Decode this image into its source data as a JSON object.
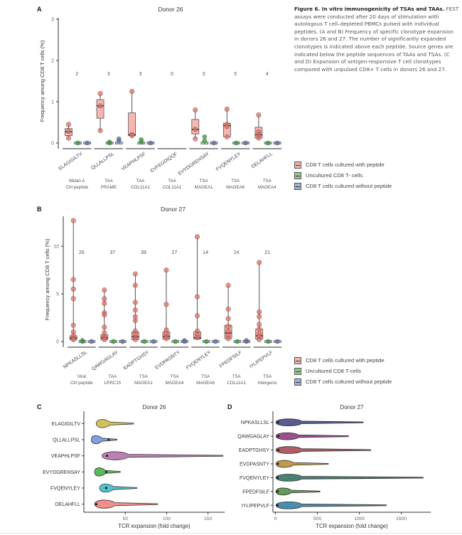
{
  "caption": {
    "title": "Figure 6. In vitro immunogenicity of TSAs and TAAs.",
    "body": "FEST assays were conducted after 20 days of stimulation with autologous T cell–depleted PBMCs pulsed with individual peptides. (A and B) Frequency of specific clonotype expansion in donors 26 and 27. The number of significantly expanded clonotypes is indicated above each peptide. Source genes are indicated below the peptide sequences of TAAs and TSAs. (C and D) Expansion of antigen-responsive T cell clonotypes compared with unpulsed CD8+ T cells in donors 26 and 27."
  },
  "colors": {
    "with_peptide": "#e8837b",
    "uncultured": "#3f8f45",
    "without_peptide": "#5a6f9e"
  },
  "legend_A": [
    {
      "label": "CD8 T cells cultured with peptide",
      "color": "#e8837b"
    },
    {
      "label": "Uncultured CD8 T- cells",
      "color": "#3f8f45"
    },
    {
      "label": "CD8 T cells cultured without peptide",
      "color": "#5a6f9e"
    }
  ],
  "legend_B": [
    {
      "label": "CD8 T cells cultured with peptide",
      "color": "#e8837b"
    },
    {
      "label": "Uncultured CD8 T-cells",
      "color": "#3f8f45"
    },
    {
      "label": "CD8 T cells cultured without peptide",
      "color": "#5a6f9e"
    }
  ],
  "chart_data": [
    {
      "panel": "A",
      "type": "box",
      "title": "Donor 26",
      "ylabel": "Frequency among CD8 T cells (%)",
      "ylim": [
        0,
        3
      ],
      "yticks": [
        0,
        1,
        2,
        3
      ],
      "categories": [
        "ELAGIGILTV",
        "QLLALLPSL",
        "VEAPHLPSF",
        "EVFEGDIQQF",
        "EVYDGREHSAY",
        "FVQENYLEY",
        "DELAHFLL"
      ],
      "sources": [
        [
          "Melan A",
          "Ctrl peptide"
        ],
        [
          "TAA",
          "PRAME"
        ],
        [
          "TAA",
          "COL11A1"
        ],
        [
          "TAA",
          "COL11A1"
        ],
        [
          "TSA",
          "MAGEA1"
        ],
        [
          "TSA",
          "MAGEA6"
        ],
        [
          "TSA",
          "MAGEA4"
        ]
      ],
      "counts": [
        "2",
        "3",
        "3",
        "0",
        "3",
        "5",
        "4"
      ],
      "series": [
        {
          "name": "CD8 T cells cultured with peptide",
          "points": [
            [
              0.45,
              0.28,
              0.12
            ],
            [
              1.2,
              0.9,
              0.3
            ],
            [
              1.25,
              0.2,
              0.18
            ],
            [],
            [
              0.8,
              0.33,
              0.1
            ],
            [
              0.82,
              0.45,
              0.4,
              0.15
            ],
            [
              0.68,
              0.27,
              0.2,
              0.12
            ]
          ],
          "box": [
            [
              0.18,
              0.27,
              0.35
            ],
            [
              0.6,
              0.9,
              1.05
            ],
            [
              0.18,
              0.2,
              0.73
            ],
            null,
            [
              0.22,
              0.33,
              0.57
            ],
            [
              0.15,
              0.42,
              0.48
            ],
            [
              0.12,
              0.2,
              0.38
            ]
          ]
        },
        {
          "name": "Uncultured CD8 T- cells",
          "points": [
            [
              0.0
            ],
            [
              0.02,
              0.0
            ],
            [
              0.08,
              0.02
            ],
            [],
            [
              0.15,
              0.05
            ],
            [
              0.0
            ],
            [
              0.0
            ]
          ]
        },
        {
          "name": "CD8 T cells cultured without peptide",
          "points": [
            [
              0.0
            ],
            [
              0.1,
              0.05
            ],
            [
              0.0
            ],
            [],
            [
              0.0
            ],
            [
              0.0
            ],
            [
              0.0
            ]
          ]
        }
      ]
    },
    {
      "panel": "B",
      "type": "box",
      "title": "Donor 27",
      "ylabel": "Frequency among CD8 T cells (%)",
      "ylim": [
        0,
        13
      ],
      "yticks": [
        0,
        5,
        10
      ],
      "categories": [
        "NPKASLLSL",
        "QAWGAGLAY",
        "EADPTGHSY",
        "EVDPASNTY",
        "FVQENYLEY",
        "FPEDFSILF",
        "IYLIPEPVLF"
      ],
      "sources": [
        [
          "Viral",
          "Ctrl peptide"
        ],
        [
          "TAA",
          "LRRC15"
        ],
        [
          "TSA",
          "MAGEA1"
        ],
        [
          "TSA",
          "MAGEA4"
        ],
        [
          "TSA",
          "MAGEA6"
        ],
        [
          "TSA",
          "COL11A1"
        ],
        [
          "TSA",
          "Intergenic"
        ]
      ],
      "counts": [
        "26",
        "37",
        "39",
        "27",
        "14",
        "24",
        "21"
      ],
      "series": [
        {
          "name": "CD8 T cells cultured with peptide",
          "points": [
            [
              12.7,
              6.5,
              5.5,
              4.5,
              1.7,
              1.0,
              0.6,
              0.3,
              0.2
            ],
            [
              5.4,
              4.5,
              4.0,
              3.0,
              2.8,
              1.5,
              0.9,
              0.5,
              0.3,
              0.2
            ],
            [
              7.1,
              5.9,
              4.1,
              3.3,
              2.6,
              2.2,
              1.1,
              0.8,
              0.4,
              0.2
            ],
            [
              7.5,
              3.9,
              1.2,
              0.8,
              0.5,
              0.3
            ],
            [
              11.0,
              4.7,
              2.7,
              1.1,
              0.7,
              0.4
            ],
            [
              5.9,
              3.4,
              2.4,
              1.6,
              1.1,
              0.6,
              0.3
            ],
            [
              8.3,
              3.1,
              2.6,
              1.8,
              1.3,
              0.8,
              0.5,
              0.2
            ]
          ],
          "box": [
            [
              0.2,
              0.35,
              0.6
            ],
            [
              0.2,
              0.4,
              0.7
            ],
            [
              0.2,
              0.5,
              1.0
            ],
            [
              0.25,
              0.55,
              1.0
            ],
            [
              0.25,
              0.4,
              1.0
            ],
            [
              0.3,
              0.9,
              1.7
            ],
            [
              0.25,
              0.6,
              1.3
            ]
          ]
        },
        {
          "name": "Uncultured CD8 T-cells",
          "points": [
            [
              0.1,
              0.0
            ],
            [
              0.0
            ],
            [
              0.0
            ],
            [
              0.0
            ],
            [
              0.0
            ],
            [
              0.0
            ],
            [
              0.0
            ]
          ]
        },
        {
          "name": "CD8 T cells cultured without peptide",
          "points": [
            [
              0.0
            ],
            [
              0.0
            ],
            [
              0.0
            ],
            [
              0.1,
              0.0
            ],
            [
              0.0
            ],
            [
              0.1,
              0.0
            ],
            [
              0.0
            ]
          ]
        }
      ]
    },
    {
      "panel": "C",
      "type": "violin",
      "title": "Donor 26",
      "xlabel": "TCR expansion (fold change)",
      "xlim": [
        0,
        170
      ],
      "xticks": [
        50,
        100,
        150
      ],
      "categories": [
        "ELAGIGILTV",
        "QLLALLPSL",
        "VEAPHLPSF",
        "EVYDGREHSAY",
        "FVQENYLEY",
        "DELAHFLL"
      ],
      "colors": [
        "#c9b43c",
        "#6a8fd6",
        "#b06aa8",
        "#3fae3f",
        "#33b8c6",
        "#f07a72"
      ],
      "ranges": [
        [
          15,
          60
        ],
        [
          9,
          40
        ],
        [
          22,
          168
        ],
        [
          13,
          44
        ],
        [
          19,
          64
        ],
        [
          13,
          89
        ]
      ],
      "medians": [
        null,
        30,
        28,
        27,
        27,
        15
      ]
    },
    {
      "panel": "D",
      "type": "violin",
      "title": "Donor 27",
      "xlabel": "TCR expansion (fold change)",
      "xlim": [
        -30,
        1850
      ],
      "xticks": [
        0,
        500,
        1000,
        1500
      ],
      "categories": [
        "NPKASLLSL",
        "QAWGAGLAY",
        "EADPTGHSY",
        "EVDPASNTY",
        "FVQENYLEY",
        "FPEDFSILF",
        "IYLIPEPVLF"
      ],
      "colors": [
        "#3b3f7a",
        "#8a2f7a",
        "#a0404a",
        "#b58a2a",
        "#2a6a5a",
        "#4a8a3a",
        "#2a7aa0"
      ],
      "ranges": [
        [
          5,
          1045
        ],
        [
          5,
          870
        ],
        [
          5,
          1135
        ],
        [
          5,
          630
        ],
        [
          5,
          1760
        ],
        [
          5,
          530
        ],
        [
          5,
          1320
        ]
      ],
      "medians": [
        30,
        35,
        35,
        30,
        25,
        25,
        25
      ]
    }
  ]
}
